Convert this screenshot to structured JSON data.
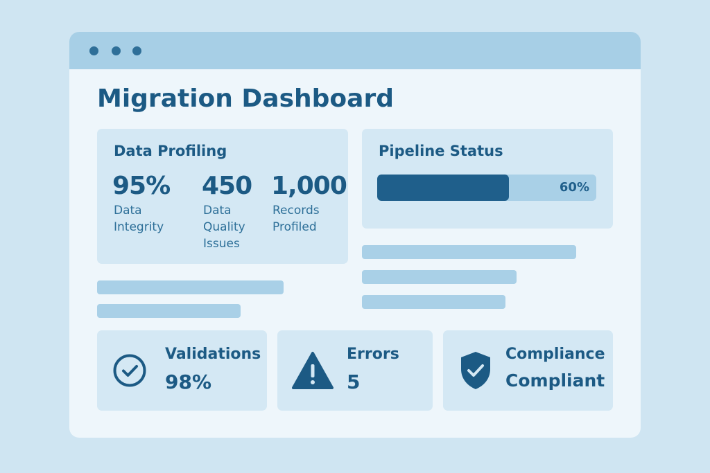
{
  "window": {
    "title": "Migration Dashboard"
  },
  "data_profiling": {
    "title": "Data Profiling",
    "metrics": [
      {
        "value": "95%",
        "label": "Data Integrity"
      },
      {
        "value": "450",
        "label": "Data Quality Issues"
      },
      {
        "value": "1,000",
        "label": "Records Profiled"
      }
    ]
  },
  "pipeline_status": {
    "title": "Pipeline Status",
    "progress": 0.6,
    "progress_text": "60%"
  },
  "stats": {
    "validations": {
      "label": "Validations",
      "value": "98%",
      "icon": "check-circle-icon"
    },
    "errors": {
      "label": "Errors",
      "value": "5",
      "icon": "warning-triangle-icon"
    },
    "compliance": {
      "label": "Compliance",
      "value": "Compliant",
      "icon": "shield-check-icon"
    }
  },
  "colors": {
    "background": "#cfe5f2",
    "window": "#eef6fb",
    "titlebar": "#a7cfe6",
    "card": "#d4e8f4",
    "primary": "#1c5a84",
    "placeholder": "#a9d0e7"
  }
}
